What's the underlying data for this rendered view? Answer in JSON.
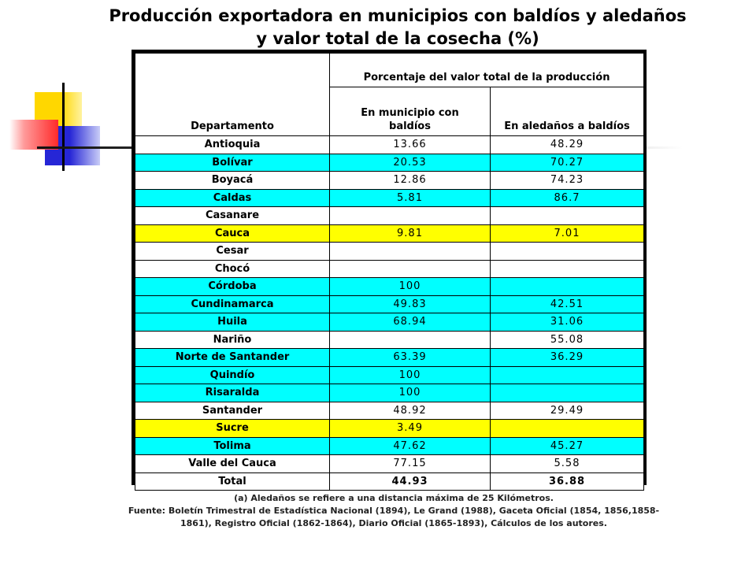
{
  "title_line1": "Producción exportadora en municipios con baldíos y aledaños",
  "title_line2": "y valor total de la cosecha (%)",
  "header_group": "Porcentaje del valor total de la producción",
  "col_departamento": "Departamento",
  "col_municipio_line1": "En municipio con",
  "col_municipio_line2": "baldíos",
  "col_aledanos": "En aledaños a baldíos",
  "rows": [
    {
      "dep": "Antioquia",
      "mun": "13.66",
      "ale": "48.29",
      "bg": "white"
    },
    {
      "dep": "Bolívar",
      "mun": "20.53",
      "ale": "70.27",
      "bg": "cyan"
    },
    {
      "dep": "Boyacá",
      "mun": "12.86",
      "ale": "74.23",
      "bg": "white"
    },
    {
      "dep": "Caldas",
      "mun": "5.81",
      "ale": "86.7",
      "bg": "cyan"
    },
    {
      "dep": "Casanare",
      "mun": "",
      "ale": "",
      "bg": "white"
    },
    {
      "dep": "Cauca",
      "mun": "9.81",
      "ale": "7.01",
      "bg": "yellow"
    },
    {
      "dep": "Cesar",
      "mun": "",
      "ale": "",
      "bg": "white"
    },
    {
      "dep": "Chocó",
      "mun": "",
      "ale": "",
      "bg": "white"
    },
    {
      "dep": "Córdoba",
      "mun": "100",
      "ale": "",
      "bg": "cyan"
    },
    {
      "dep": "Cundinamarca",
      "mun": "49.83",
      "ale": "42.51",
      "bg": "cyan"
    },
    {
      "dep": "Huila",
      "mun": "68.94",
      "ale": "31.06",
      "bg": "cyan"
    },
    {
      "dep": "Nariño",
      "mun": "",
      "ale": "55.08",
      "bg": "white"
    },
    {
      "dep": "Norte de Santander",
      "mun": "63.39",
      "ale": "36.29",
      "bg": "cyan"
    },
    {
      "dep": "Quindío",
      "mun": "100",
      "ale": "",
      "bg": "cyan"
    },
    {
      "dep": "Risaralda",
      "mun": "100",
      "ale": "",
      "bg": "cyan"
    },
    {
      "dep": "Santander",
      "mun": "48.92",
      "ale": "29.49",
      "bg": "white"
    },
    {
      "dep": "Sucre",
      "mun": "3.49",
      "ale": "",
      "bg": "yellow"
    },
    {
      "dep": "Tolima",
      "mun": "47.62",
      "ale": "45.27",
      "bg": "cyan"
    },
    {
      "dep": "Valle del Cauca",
      "mun": "77.15",
      "ale": "5.58",
      "bg": "white"
    },
    {
      "dep": "Total",
      "mun": "44.93",
      "ale": "36.88",
      "bg": "white",
      "total": true
    }
  ],
  "note_a": "(a) Aledaños se refiere a una distancia máxima de 25 Kilómetros.",
  "note_fuente_1": "Fuente: Boletín Trimestral de Estadística Nacional (1894), Le Grand (1988), Gaceta Oficial (1854, 1856,1858-",
  "note_fuente_2": "1861), Registro Oficial (1862-1864),  Diario Oficial (1865-1893),  Cálculos de los autores.",
  "colors": {
    "cyan": "#00ffff",
    "yellow": "#ffff00",
    "white": "#ffffff"
  }
}
